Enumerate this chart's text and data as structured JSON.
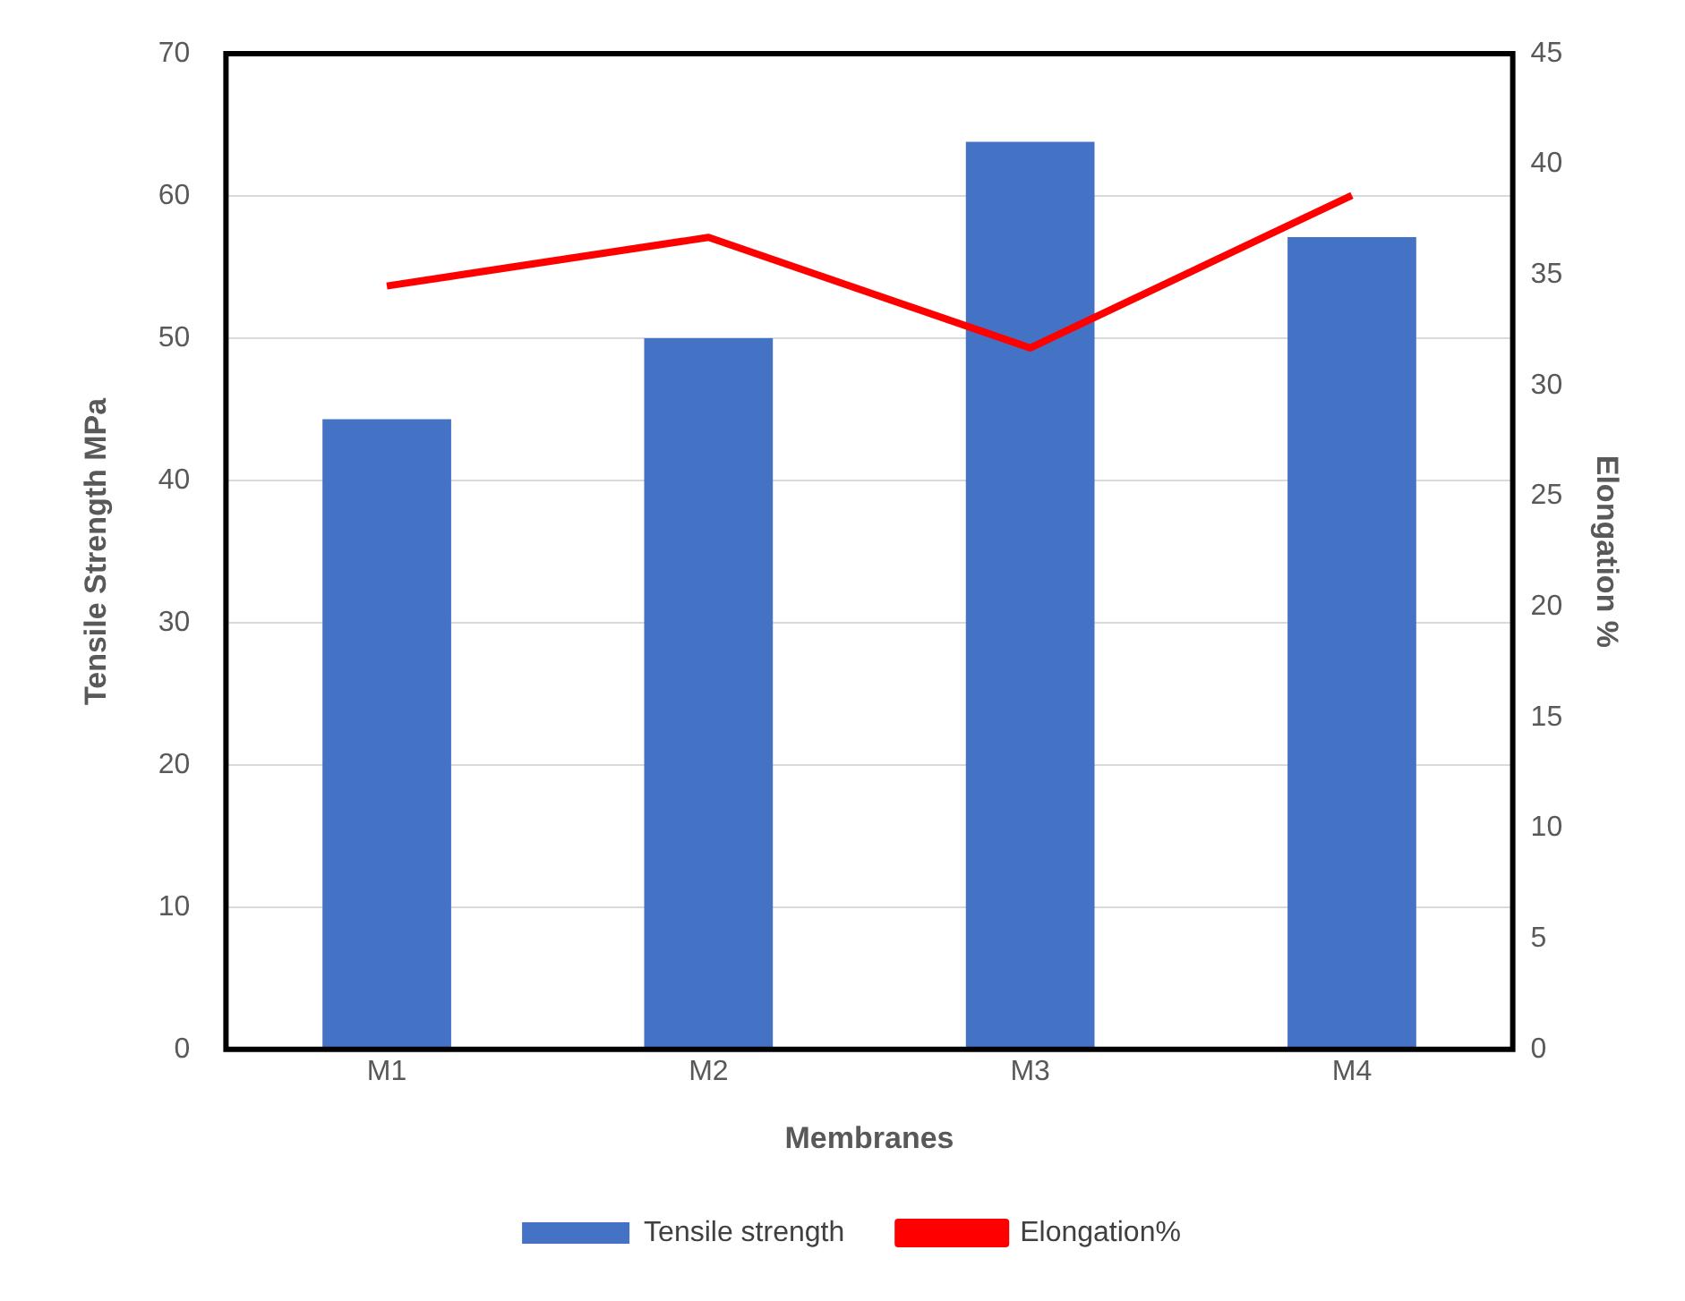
{
  "chart_data": {
    "type": "bar",
    "xlabel": "Membranes",
    "ylabel": "Tensile Strength MPa",
    "y2label": "Elongation %",
    "categories": [
      "M1",
      "M2",
      "M3",
      "M4"
    ],
    "series": [
      {
        "name": "Tensile strength",
        "color": "#4472c4",
        "values": [
          44.3,
          50,
          63.8,
          57.1
        ]
      },
      {
        "name": "Elongation%",
        "type": "line",
        "axis": "y2",
        "color": "#ff0000",
        "marker": "none",
        "values": [
          34.5,
          36.7,
          31.7,
          38.6
        ]
      }
    ],
    "ylim": [
      0,
      70
    ],
    "yticks": [
      0,
      10,
      20,
      30,
      40,
      50,
      60,
      70
    ],
    "y2lim": [
      0,
      45
    ],
    "y2ticks": [
      0,
      5,
      10,
      15,
      20,
      25,
      30,
      35,
      40,
      45
    ],
    "grid": "y",
    "legend": "bottom"
  }
}
